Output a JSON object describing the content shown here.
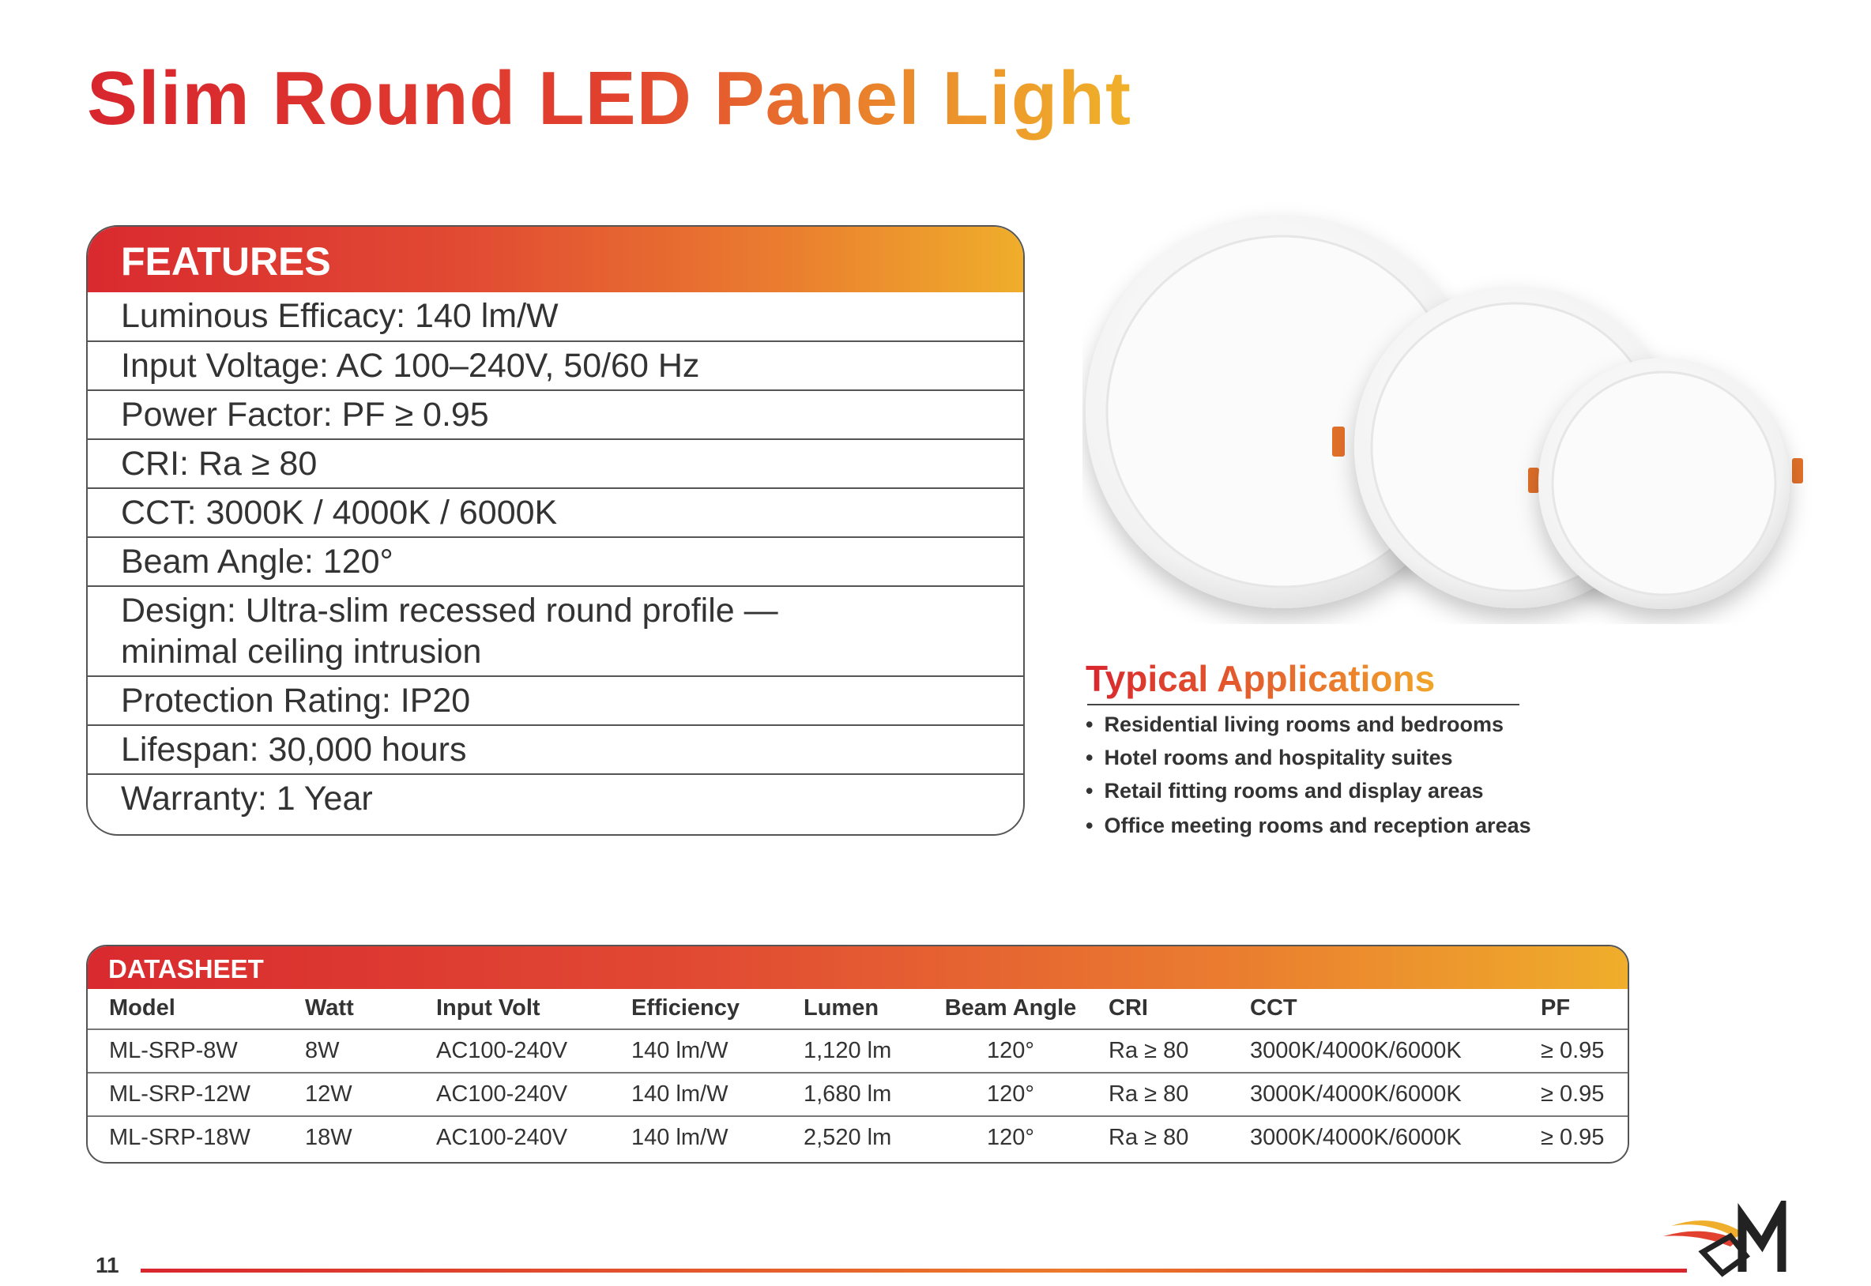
{
  "title": "Slim Round LED Panel Light",
  "features": {
    "heading": "FEATURES",
    "items": [
      "Luminous Efficacy: 140 lm/W",
      "Input Voltage: AC 100–240V, 50/60 Hz",
      "Power Factor: PF ≥ 0.95",
      "CRI: Ra ≥ 80",
      "CCT: 3000K / 4000K / 6000K",
      "Beam Angle: 120°",
      "Design: Ultra-slim recessed round profile — minimal ceiling intrusion",
      "Protection Rating: IP20",
      "Lifespan: 30,000 hours",
      "Warranty: 1 Year"
    ]
  },
  "applications": {
    "heading": "Typical Applications",
    "items": [
      "Residential living rooms and bedrooms",
      "Hotel rooms and hospitality suites",
      "Retail fitting rooms and display areas",
      "Office meeting rooms and reception areas"
    ]
  },
  "datasheet": {
    "heading": "DATASHEET",
    "columns": [
      "Model",
      "Watt",
      "Input Volt",
      "Efficiency",
      "Lumen",
      "Beam Angle",
      "CRI",
      "CCT",
      "PF"
    ],
    "rows": [
      [
        "ML-SRP-8W",
        "8W",
        "AC100-240V",
        "140 lm/W",
        "1,120 lm",
        "120°",
        "Ra ≥ 80",
        "3000K/4000K/6000K",
        "≥ 0.95"
      ],
      [
        "ML-SRP-12W",
        "12W",
        "AC100-240V",
        "140 lm/W",
        "1,680 lm",
        "120°",
        "Ra ≥ 80",
        "3000K/4000K/6000K",
        "≥ 0.95"
      ],
      [
        "ML-SRP-18W",
        "18W",
        "AC100-240V",
        "140 lm/W",
        "2,520 lm",
        "120°",
        "Ra ≥ 80",
        "3000K/4000K/6000K",
        "≥ 0.95"
      ]
    ]
  },
  "page_number": "11"
}
